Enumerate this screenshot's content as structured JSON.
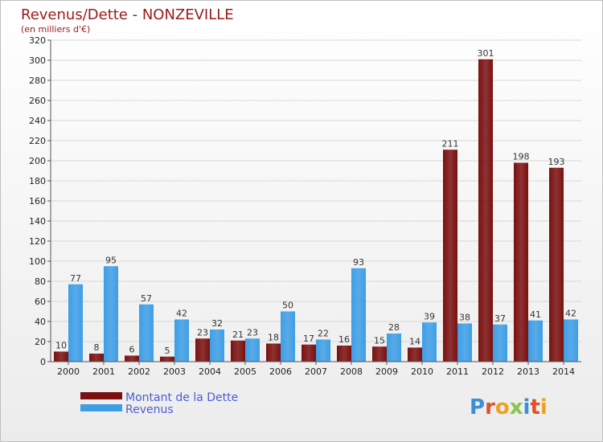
{
  "chart_data": {
    "type": "bar",
    "title": "Revenus/Dette - NONZEVILLE",
    "subtitle": "(en milliers d'€)",
    "categories": [
      "2000",
      "2001",
      "2002",
      "2003",
      "2004",
      "2005",
      "2006",
      "2007",
      "2008",
      "2009",
      "2010",
      "2011",
      "2012",
      "2013",
      "2014"
    ],
    "series": [
      {
        "name": "Montant de la Dette",
        "color": "#7a1010",
        "values": [
          10,
          8,
          6,
          5,
          23,
          21,
          18,
          17,
          16,
          15,
          14,
          211,
          301,
          198,
          193
        ]
      },
      {
        "name": "Revenus",
        "color": "#3d9ee6",
        "values": [
          77,
          95,
          57,
          42,
          32,
          23,
          50,
          22,
          93,
          28,
          39,
          38,
          37,
          41,
          42
        ]
      }
    ],
    "ylim": [
      0,
      320
    ],
    "ytick_step": 20,
    "grid": true,
    "legend": "bottom-left"
  },
  "watermark": "Proxiti"
}
